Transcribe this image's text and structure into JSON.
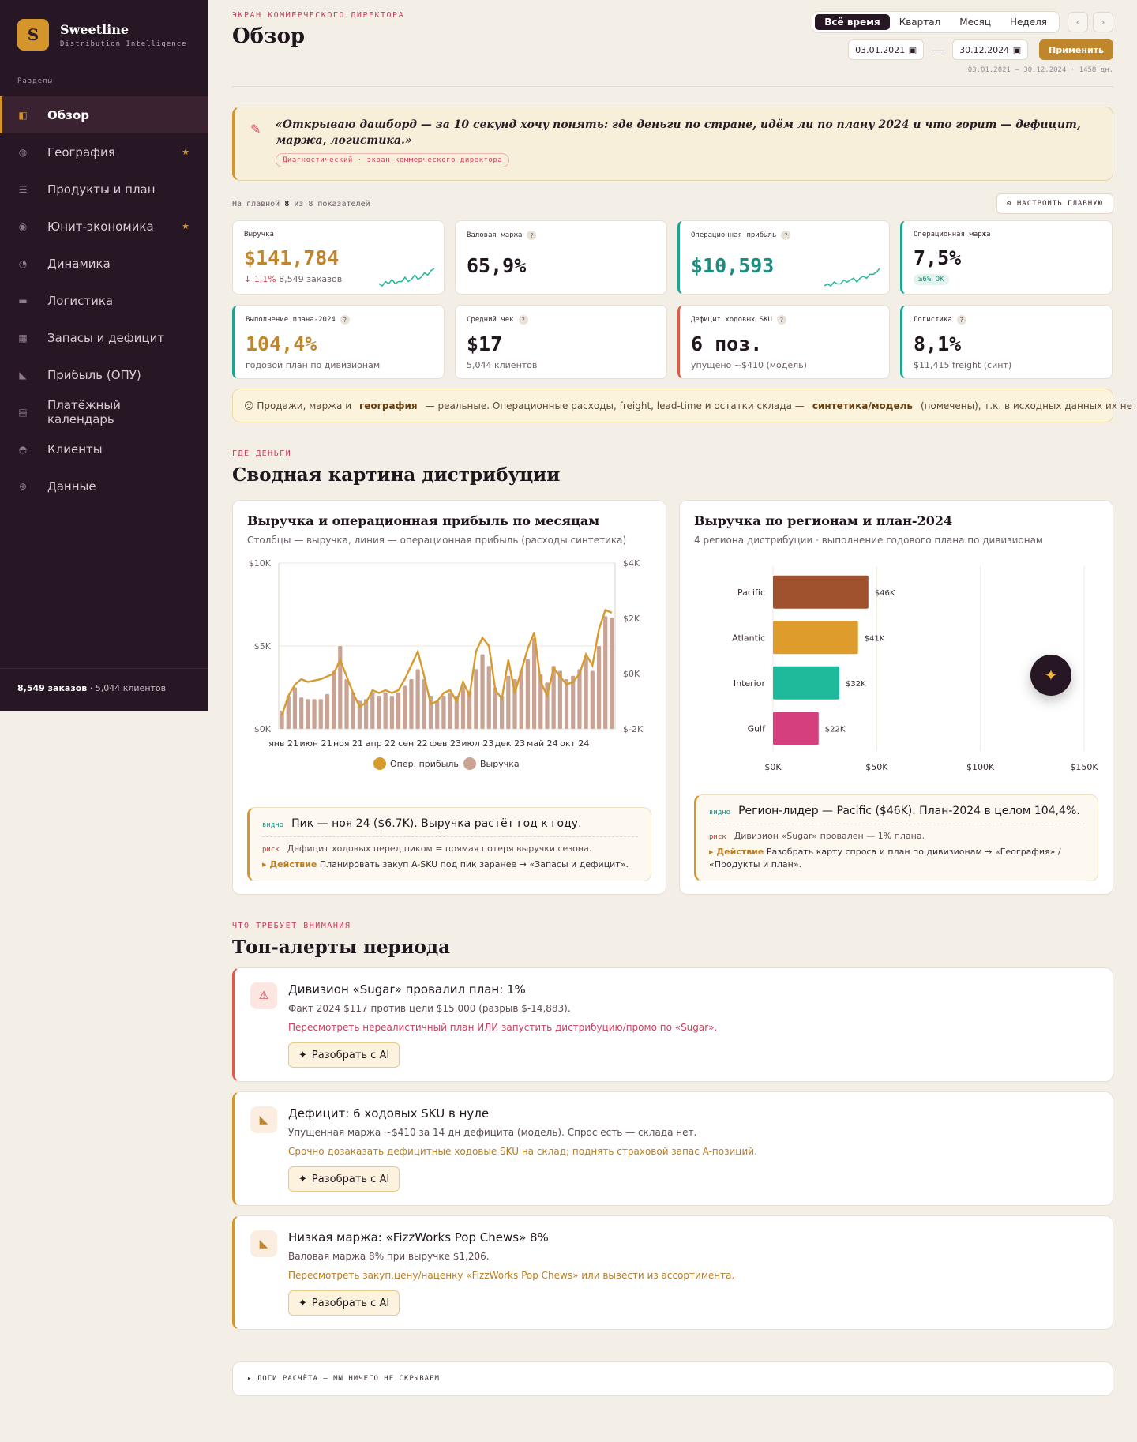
{
  "brand": {
    "initial": "S",
    "name": "Sweetline",
    "sub": "Distribution Intelligence"
  },
  "sidebar": {
    "section_label": "Разделы",
    "items": [
      {
        "label": "Обзор",
        "icon": "overview-icon",
        "active": true,
        "star": false
      },
      {
        "label": "География",
        "icon": "geo-icon",
        "active": false,
        "star": true
      },
      {
        "label": "Продукты и план",
        "icon": "list-icon",
        "active": false,
        "star": false
      },
      {
        "label": "Юнит-экономика",
        "icon": "unit-icon",
        "active": false,
        "star": true
      },
      {
        "label": "Динамика",
        "icon": "dynamics-icon",
        "active": false,
        "star": false
      },
      {
        "label": "Логистика",
        "icon": "truck-icon",
        "active": false,
        "star": false
      },
      {
        "label": "Запасы и дефицит",
        "icon": "stock-icon",
        "active": false,
        "star": false
      },
      {
        "label": "Прибыль (ОПУ)",
        "icon": "profit-icon",
        "active": false,
        "star": false
      },
      {
        "label": "Платёжный календарь",
        "icon": "calendar-icon",
        "active": false,
        "star": false
      },
      {
        "label": "Клиенты",
        "icon": "clients-icon",
        "active": false,
        "star": false
      },
      {
        "label": "Данные",
        "icon": "data-icon",
        "active": false,
        "star": false
      }
    ],
    "footer_orders": "8,549 заказов",
    "footer_clients": " · 5,044 клиентов"
  },
  "header": {
    "eyebrow": "ЭКРАН КОММЕРЧЕСКОГО ДИРЕКТОРА",
    "title": "Обзор",
    "tabs": [
      "Всё время",
      "Квартал",
      "Месяц",
      "Неделя"
    ],
    "active_tab": "Всё время",
    "date_from": "03.01.2021",
    "date_to": "30.12.2024",
    "apply": "Применить",
    "range_note": "03.01.2021 — 30.12.2024 · 1458 дн."
  },
  "quote": {
    "text": "«Открываю дашборд — за 10 секунд хочу понять: где деньги по стране, идём ли по плану 2024 и что горит — дефицит, маржа, логистика.»",
    "tag": "Диагностический · экран коммерческого директора"
  },
  "kpi_bar": {
    "prefix": "На главной",
    "shown": "8",
    "suffix": "из 8 показателей",
    "customize": "⚙ НАСТРОИТЬ ГЛАВНУЮ"
  },
  "kpis": [
    {
      "label": "Выручка",
      "value": "$141,784",
      "delta": "↓ 1,1%",
      "sub": "8,549 заказов"
    },
    {
      "label": "Валовая маржа",
      "value": "65,9%"
    },
    {
      "label": "Операционная прибыль",
      "value": "$10,593"
    },
    {
      "label": "Операционная маржа",
      "value": "7,5%",
      "badge": "≥6% OK"
    },
    {
      "label": "Выполнение плана-2024",
      "value": "104,4%",
      "sub": "годовой план по дивизионам"
    },
    {
      "label": "Средний чек",
      "value": "$17",
      "sub": "5,044 клиентов"
    },
    {
      "label": "Дефицит ходовых SKU",
      "value": "6 поз.",
      "sub": "упущено ~$410 (модель)"
    },
    {
      "label": "Логистика",
      "value": "8,1%",
      "sub": "$11,415 freight (синт)"
    }
  ],
  "note": {
    "part1": "☺ Продажи, маржа и",
    "bold1": "география",
    "part2": "— реальные. Операционные расходы, freight, lead-time и остатки склада —",
    "bold2": "синтетика/модель",
    "part3": "(помечены), т.к. в исходных данных их нет."
  },
  "section1": {
    "eyebrow": "ГДЕ ДЕНЬГИ",
    "title": "Сводная картина дистрибуции"
  },
  "chart1": {
    "title": "Выручка и операционная прибыль по месяцам",
    "sub": "Столбцы — выручка, линия — операционная прибыль (расходы синтетика)",
    "insight": {
      "tag": "видно",
      "text": "Пик — ноя 24 ($6.7K). Выручка растёт год к году.",
      "risk_tag": "риск",
      "risk": "Дефицит ходовых перед пиком = прямая потеря выручки сезона.",
      "act_label": "▸ Действие",
      "act": "Планировать закуп A-SKU под пик заранее → «Запасы и дефицит»."
    }
  },
  "chart2": {
    "title": "Выручка по регионам и план-2024",
    "sub": "4 региона дистрибуции · выполнение годового плана по дивизионам",
    "insight": {
      "tag": "видно",
      "text": "Регион-лидер — Pacific ($46K). План-2024 в целом 104,4%.",
      "risk_tag": "риск",
      "risk": "Дивизион «Sugar» провален — 1% плана.",
      "act_label": "▸ Действие",
      "act": "Разобрать карту спроса и план по дивизионам → «География» / «Продукты и план»."
    }
  },
  "chart_data": [
    {
      "type": "bar",
      "title": "Выручка и операционная прибыль по месяцам",
      "x_ticks": [
        "янв 21",
        "июн 21",
        "ноя 21",
        "апр 22",
        "сен 22",
        "фев 23",
        "июл 23",
        "дек 23",
        "май 24",
        "окт 24"
      ],
      "y_left_ticks": [
        "$0K",
        "$5K",
        "$10K"
      ],
      "y_right_ticks": [
        "$-2K",
        "$0K",
        "$2K",
        "$4K"
      ],
      "ylim_left": [
        0,
        10000
      ],
      "ylim_right": [
        -2000,
        4000
      ],
      "series": [
        {
          "name": "Выручка",
          "type": "bar",
          "color": "#c9a394",
          "values": [
            1100,
            2000,
            2500,
            1900,
            1800,
            1800,
            1800,
            2100,
            3500,
            5000,
            3000,
            2200,
            1700,
            1800,
            2200,
            2000,
            2200,
            2000,
            2200,
            2600,
            3000,
            3600,
            3000,
            2000,
            1700,
            2000,
            2200,
            2000,
            2600,
            2300,
            3600,
            4500,
            3800,
            2500,
            2000,
            3200,
            3000,
            3500,
            4200,
            5500,
            3300,
            2800,
            3800,
            3500,
            3000,
            3200,
            3600,
            4400,
            3500,
            5000,
            6800,
            6700
          ]
        },
        {
          "name": "Опер. прибыль",
          "type": "line",
          "color": "#d79a2d",
          "values": [
            -1500,
            -800,
            -400,
            -200,
            -300,
            -250,
            -200,
            -100,
            0,
            500,
            -100,
            -700,
            -1200,
            -1050,
            -600,
            -700,
            -600,
            -700,
            -600,
            -200,
            300,
            800,
            -100,
            -1100,
            -1000,
            -700,
            -600,
            -1000,
            -300,
            -800,
            800,
            1300,
            1000,
            -600,
            -900,
            500,
            -700,
            100,
            900,
            1500,
            -300,
            -800,
            200,
            -100,
            -400,
            -300,
            0,
            700,
            300,
            1600,
            2300,
            2200
          ]
        }
      ],
      "legend": [
        "Опер. прибыль",
        "Выручка"
      ]
    },
    {
      "type": "bar",
      "title": "Выручка по регионам и план-2024",
      "orientation": "horizontal",
      "categories": [
        "Pacific",
        "Atlantic",
        "Interior",
        "Gulf"
      ],
      "values": [
        46000,
        41000,
        32000,
        22000
      ],
      "labels": [
        "$46K",
        "$41K",
        "$32K",
        "$22K"
      ],
      "colors": [
        "#a0512d",
        "#dd9c2b",
        "#1fb99b",
        "#d63f7d"
      ],
      "x_ticks": [
        "$0K",
        "$50K",
        "$100K",
        "$150K"
      ],
      "xlim": [
        0,
        150000
      ]
    }
  ],
  "section2": {
    "eyebrow": "ЧТО ТРЕБУЕТ ВНИМАНИЯ",
    "title": "Топ-алерты периода"
  },
  "alerts": [
    {
      "title": "Дивизион «Sugar» провалил план: 1%",
      "desc": "Факт 2024 $117 против цели $15,000 (разрыв $-14,883).",
      "action": "Пересмотреть нереалистичный план ИЛИ запустить дистрибуцию/промо по «Sugar».",
      "button": "Разобрать с AI"
    },
    {
      "title": "Дефицит: 6 ходовых SKU в нуле",
      "desc": "Упущенная маржа ~$410 за 14 дн дефицита (модель). Спрос есть — склада нет.",
      "action": "Срочно дозаказать дефицитные ходовые SKU на склад; поднять страховой запас A-позиций.",
      "button": "Разобрать с AI"
    },
    {
      "title": "Низкая маржа: «FizzWorks Pop Chews» 8%",
      "desc": "Валовая маржа 8% при выручке $1,206.",
      "action": "Пересмотреть закуп.цену/наценку «FizzWorks Pop Chews» или вывести из ассортимента.",
      "button": "Разобрать с AI"
    }
  ],
  "logs": "▸ ЛОГИ РАСЧЁТА — МЫ НИЧЕГО НЕ СКРЫВАЕМ",
  "sparklines": {
    "revenue": [
      3,
      2,
      4,
      3,
      5,
      3,
      4,
      4,
      6,
      4,
      5,
      7,
      5,
      6,
      8,
      7,
      9,
      10
    ],
    "profit": [
      2,
      3,
      2,
      4,
      3,
      3,
      5,
      4,
      5,
      6,
      4,
      6,
      7,
      6,
      8,
      8,
      9,
      11
    ]
  }
}
